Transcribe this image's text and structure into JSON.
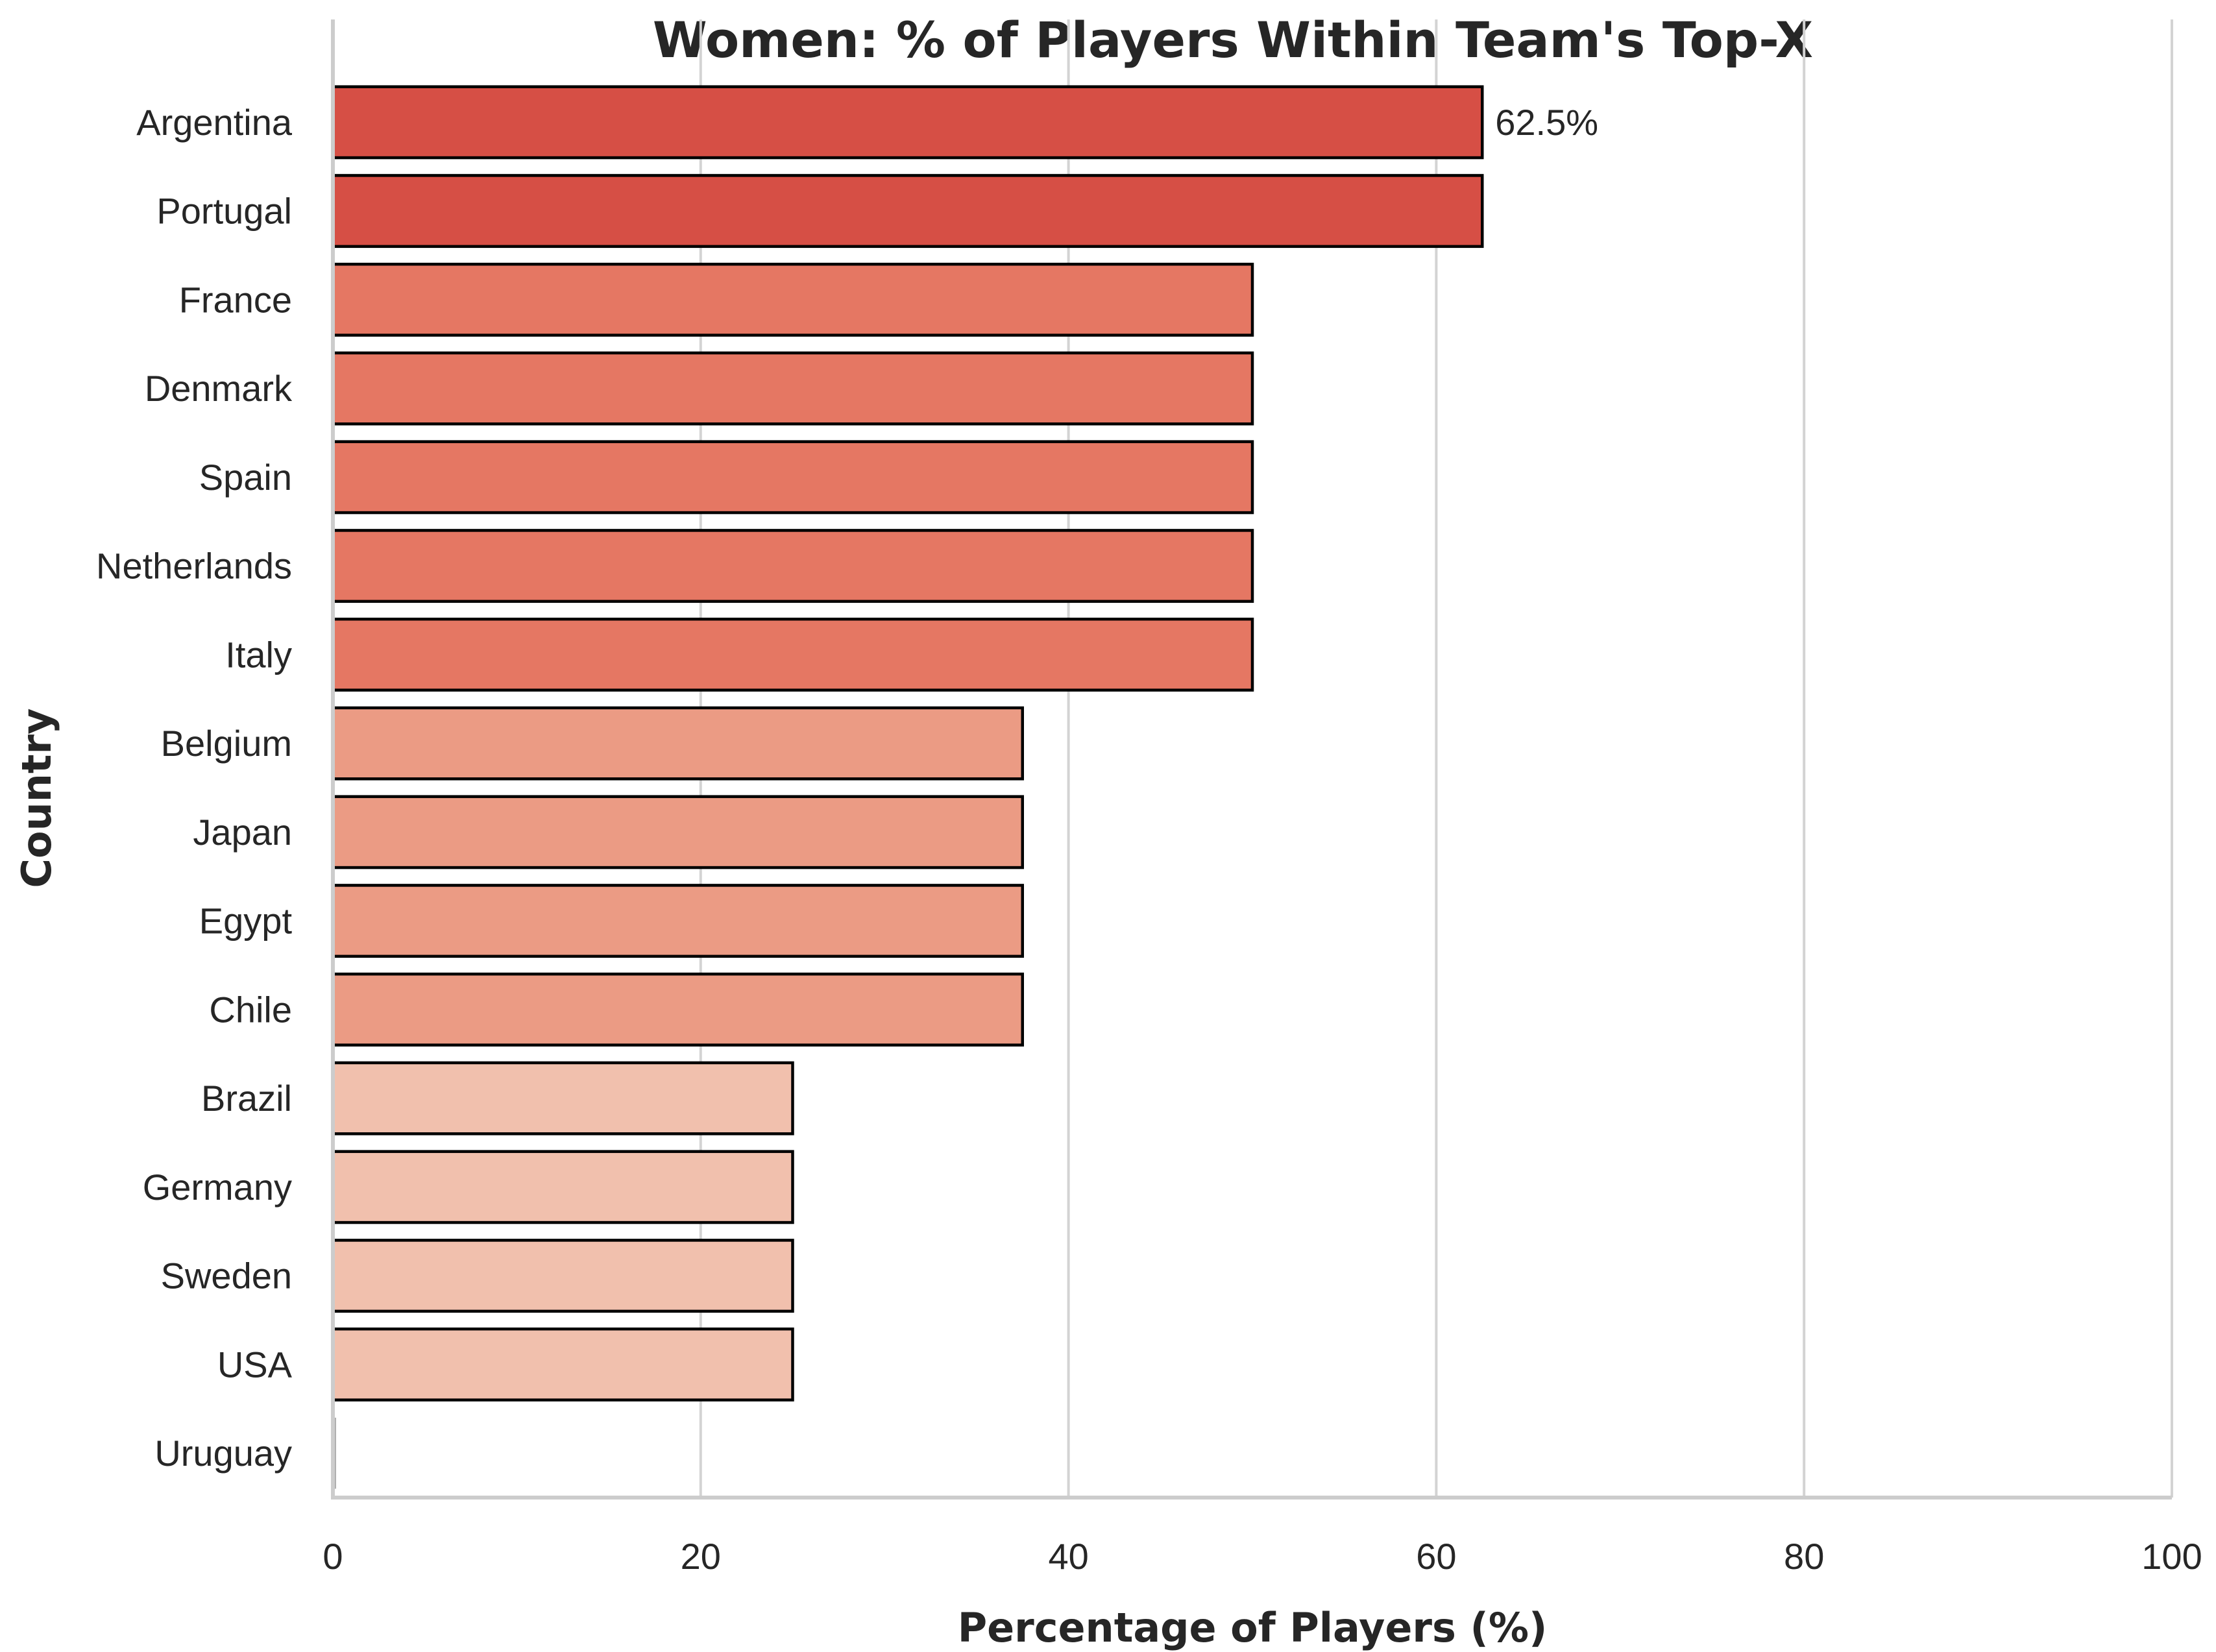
{
  "chart_data": {
    "type": "bar",
    "orientation": "horizontal",
    "title": "Women: % of Players Within Team's Top-X",
    "xlabel": "Percentage of Players (%)",
    "ylabel": "Country",
    "xlim": [
      0,
      100
    ],
    "x_ticks": [
      "0",
      "20",
      "40",
      "60",
      "80",
      "100"
    ],
    "grid": "vertical gridlines",
    "legend": "none",
    "categories": [
      "Argentina",
      "Portugal",
      "France",
      "Denmark",
      "Spain",
      "Netherlands",
      "Italy",
      "Belgium",
      "Japan",
      "Egypt",
      "Chile",
      "Brazil",
      "Germany",
      "Sweden",
      "USA",
      "Uruguay"
    ],
    "values": [
      62.5,
      62.5,
      50,
      50,
      50,
      50,
      50,
      37.5,
      37.5,
      37.5,
      37.5,
      25,
      25,
      25,
      25,
      0
    ],
    "bar_colors": [
      "#d64f45",
      "#d64f45",
      "#e57763",
      "#e57763",
      "#e57763",
      "#e57763",
      "#e57763",
      "#eb9b84",
      "#eb9b84",
      "#eb9b84",
      "#eb9b84",
      "#f1c0ad",
      "#f1c0ad",
      "#f1c0ad",
      "#f1c0ad",
      "#f7e0d6"
    ],
    "data_labels": [
      {
        "category": "Argentina",
        "text": "62.5%"
      }
    ]
  }
}
